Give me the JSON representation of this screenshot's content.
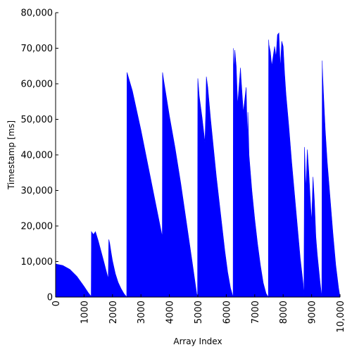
{
  "chart_data": {
    "type": "area",
    "title": "",
    "xlabel": "Array Index",
    "ylabel": "Timestamp [ms]",
    "xlim": [
      0,
      10000
    ],
    "ylim": [
      0,
      80000
    ],
    "x_ticks": [
      0,
      1000,
      2000,
      3000,
      4000,
      5000,
      6000,
      7000,
      8000,
      9000,
      10000
    ],
    "x_tick_labels": [
      "0",
      "1000",
      "2000",
      "3000",
      "4000",
      "5000",
      "6000",
      "7000",
      "8000",
      "9000",
      "10,000"
    ],
    "y_ticks": [
      0,
      10000,
      20000,
      30000,
      40000,
      50000,
      60000,
      70000,
      80000
    ],
    "y_tick_labels": [
      "0",
      "10,000",
      "20,000",
      "30,000",
      "40,000",
      "50,000",
      "60,000",
      "70,000",
      "80,000"
    ],
    "grid": false,
    "legend": "none",
    "colors": {
      "fill": "#0000ff",
      "axis": "#000000"
    },
    "series": [
      {
        "x": [
          0,
          250,
          500,
          750,
          1000,
          1150,
          1240,
          1250,
          1260,
          1330,
          1400,
          1500,
          1600,
          1700,
          1800,
          1850,
          1860,
          1870,
          1900,
          1950,
          2000,
          2100,
          2200,
          2300,
          2400,
          2480,
          2500,
          2510,
          2700,
          3000,
          3300,
          3500,
          3700,
          3750,
          3760,
          3800,
          4000,
          4200,
          4400,
          4600,
          4800,
          4960,
          4990,
          5000,
          5050,
          5150,
          5250,
          5280,
          5300,
          5350,
          5450,
          5550,
          5650,
          5750,
          5850,
          5950,
          6050,
          6150,
          6240,
          6250,
          6260,
          6300,
          6350,
          6400,
          6500,
          6520,
          6600,
          6700,
          6740,
          6760,
          6800,
          6900,
          7000,
          7100,
          7200,
          7300,
          7400,
          7480,
          7490,
          7500,
          7550,
          7600,
          7700,
          7750,
          7800,
          7850,
          7900,
          7950,
          8000,
          8050,
          8100,
          8200,
          8300,
          8400,
          8500,
          8600,
          8700,
          8730,
          8750,
          8760,
          8800,
          8850,
          8900,
          8950,
          9000,
          9050,
          9100,
          9150,
          9200,
          9300,
          9360,
          9375,
          9380,
          9420,
          9480,
          9550,
          9650,
          9750,
          9850,
          9950,
          10000
        ],
        "y": [
          9300,
          8900,
          7800,
          5800,
          3000,
          1200,
          300,
          0,
          18400,
          17600,
          18400,
          15800,
          12800,
          9800,
          6700,
          5200,
          9800,
          16200,
          15200,
          12600,
          10200,
          6600,
          4100,
          2400,
          1000,
          200,
          0,
          63200,
          58000,
          47000,
          35000,
          27000,
          19000,
          17000,
          63200,
          61000,
          51000,
          42000,
          32000,
          21000,
          10000,
          1000,
          0,
          61500,
          56500,
          50500,
          43500,
          52000,
          62000,
          59000,
          50000,
          42000,
          34000,
          27000,
          20000,
          13000,
          7000,
          2500,
          0,
          70000,
          63500,
          69500,
          65000,
          54000,
          64500,
          61500,
          52000,
          59000,
          44000,
          52000,
          40000,
          30000,
          22000,
          15000,
          9000,
          4000,
          1000,
          0,
          72400,
          71000,
          69000,
          65000,
          70500,
          67500,
          73800,
          74300,
          64500,
          72000,
          70500,
          63000,
          57000,
          48000,
          38000,
          29000,
          20000,
          11000,
          4000,
          0,
          42200,
          40000,
          30000,
          41500,
          35500,
          28000,
          21000,
          33800,
          27000,
          17000,
          12000,
          4000,
          0,
          66500,
          64500,
          57000,
          47000,
          38000,
          28000,
          18000,
          9000,
          2500,
          0
        ]
      }
    ]
  }
}
